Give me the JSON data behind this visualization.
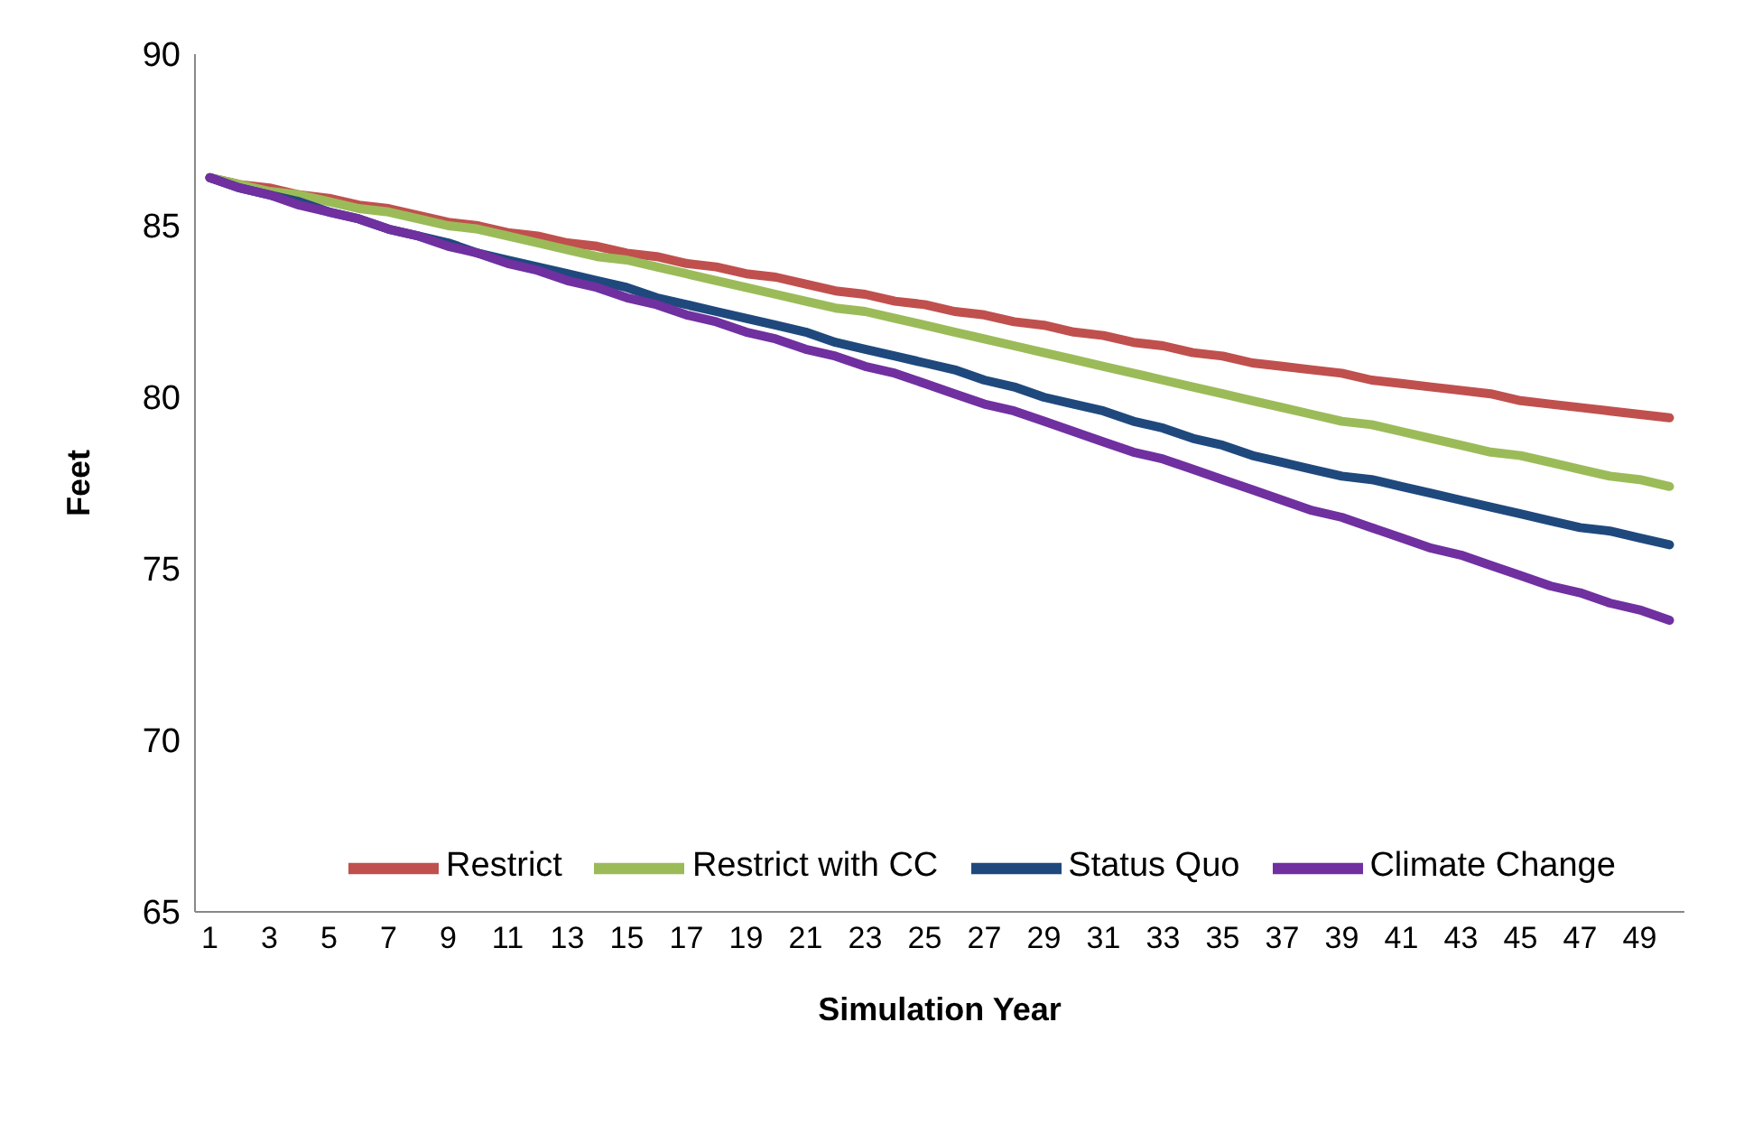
{
  "chart_data": {
    "type": "line",
    "xlabel": "Simulation Year",
    "ylabel": "Feet",
    "x": [
      1,
      2,
      3,
      4,
      5,
      6,
      7,
      8,
      9,
      10,
      11,
      12,
      13,
      14,
      15,
      16,
      17,
      18,
      19,
      20,
      21,
      22,
      23,
      24,
      25,
      26,
      27,
      28,
      29,
      30,
      31,
      32,
      33,
      34,
      35,
      36,
      37,
      38,
      39,
      40,
      41,
      42,
      43,
      44,
      45,
      46,
      47,
      48,
      49,
      50
    ],
    "series": [
      {
        "name": "Restrict",
        "color": "#c0504d",
        "values": [
          86.4,
          86.2,
          86.1,
          85.9,
          85.8,
          85.6,
          85.5,
          85.3,
          85.1,
          85.0,
          84.8,
          84.7,
          84.5,
          84.4,
          84.2,
          84.1,
          83.9,
          83.8,
          83.6,
          83.5,
          83.3,
          83.1,
          83.0,
          82.8,
          82.7,
          82.5,
          82.4,
          82.2,
          82.1,
          81.9,
          81.8,
          81.6,
          81.5,
          81.3,
          81.2,
          81.0,
          80.9,
          80.8,
          80.7,
          80.5,
          80.4,
          80.3,
          80.2,
          80.1,
          79.9,
          79.8,
          79.7,
          79.6,
          79.5,
          79.4
        ]
      },
      {
        "name": "Restrict with CC",
        "color": "#9bbb59",
        "values": [
          86.4,
          86.2,
          86.0,
          85.9,
          85.7,
          85.5,
          85.4,
          85.2,
          85.0,
          84.9,
          84.7,
          84.5,
          84.3,
          84.1,
          84.0,
          83.8,
          83.6,
          83.4,
          83.2,
          83.0,
          82.8,
          82.6,
          82.5,
          82.3,
          82.1,
          81.9,
          81.7,
          81.5,
          81.3,
          81.1,
          80.9,
          80.7,
          80.5,
          80.3,
          80.1,
          79.9,
          79.7,
          79.5,
          79.3,
          79.2,
          79.0,
          78.8,
          78.6,
          78.4,
          78.3,
          78.1,
          77.9,
          77.7,
          77.6,
          77.4
        ]
      },
      {
        "name": "Status Quo",
        "color": "#1f497d",
        "values": [
          86.4,
          86.1,
          85.9,
          85.7,
          85.4,
          85.2,
          84.9,
          84.7,
          84.5,
          84.2,
          84.0,
          83.8,
          83.6,
          83.4,
          83.2,
          82.9,
          82.7,
          82.5,
          82.3,
          82.1,
          81.9,
          81.6,
          81.4,
          81.2,
          81.0,
          80.8,
          80.5,
          80.3,
          80.0,
          79.8,
          79.6,
          79.3,
          79.1,
          78.8,
          78.6,
          78.3,
          78.1,
          77.9,
          77.7,
          77.6,
          77.4,
          77.2,
          77.0,
          76.8,
          76.6,
          76.4,
          76.2,
          76.1,
          75.9,
          75.7
        ]
      },
      {
        "name": "Climate Change",
        "color": "#7030a0",
        "values": [
          86.4,
          86.1,
          85.9,
          85.6,
          85.4,
          85.2,
          84.9,
          84.7,
          84.4,
          84.2,
          83.9,
          83.7,
          83.4,
          83.2,
          82.9,
          82.7,
          82.4,
          82.2,
          81.9,
          81.7,
          81.4,
          81.2,
          80.9,
          80.7,
          80.4,
          80.1,
          79.8,
          79.6,
          79.3,
          79.0,
          78.7,
          78.4,
          78.2,
          77.9,
          77.6,
          77.3,
          77.0,
          76.7,
          76.5,
          76.2,
          75.9,
          75.6,
          75.4,
          75.1,
          74.8,
          74.5,
          74.3,
          74.0,
          73.8,
          73.5
        ]
      }
    ],
    "xlim": [
      0.5,
      50.5
    ],
    "xticks": [
      1,
      3,
      5,
      7,
      9,
      11,
      13,
      15,
      17,
      19,
      21,
      23,
      25,
      27,
      29,
      31,
      33,
      35,
      37,
      39,
      41,
      43,
      45,
      47,
      49
    ],
    "ylim": [
      65,
      90
    ],
    "yticks": [
      65,
      70,
      75,
      80,
      85,
      90
    ],
    "grid": false,
    "legend": "bottom",
    "marker": "none",
    "line_style": "solid"
  }
}
